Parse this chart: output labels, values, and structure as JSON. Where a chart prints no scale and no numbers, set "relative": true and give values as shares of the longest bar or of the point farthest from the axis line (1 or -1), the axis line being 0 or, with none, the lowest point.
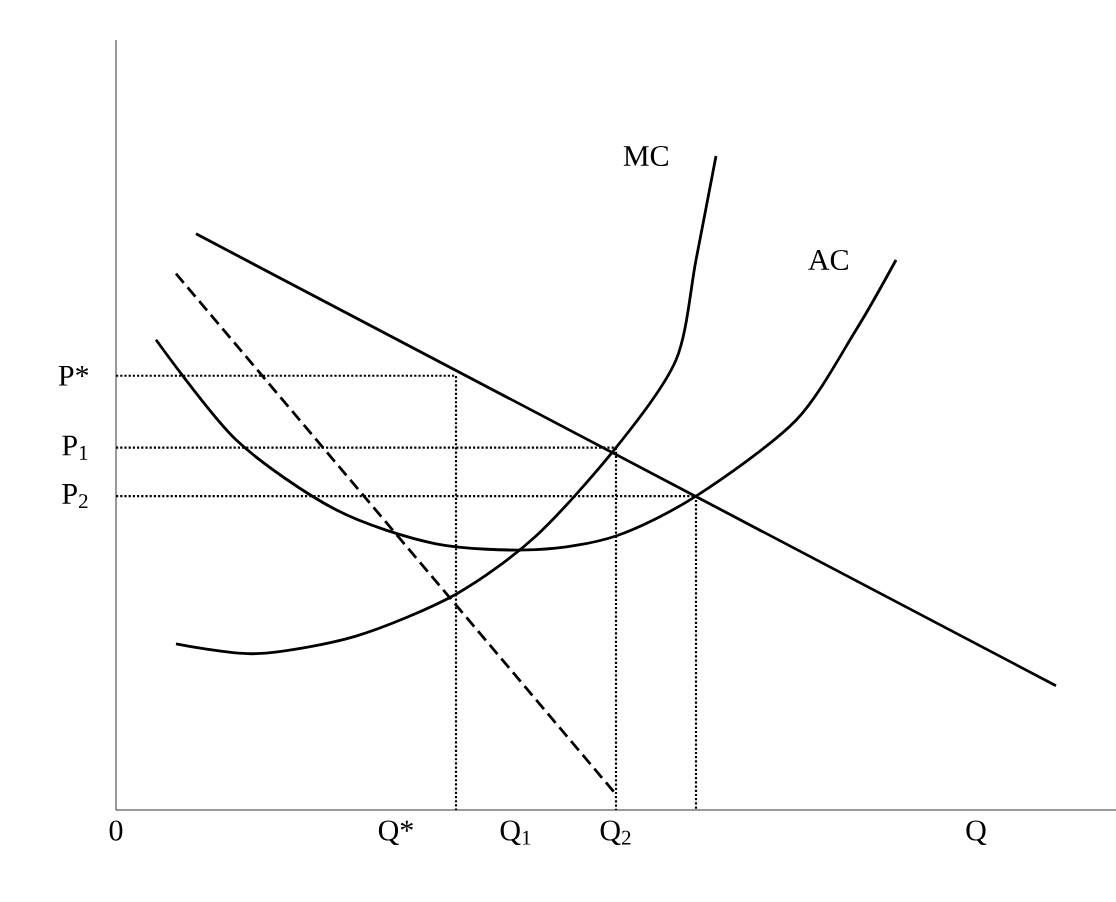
{
  "chart_data": {
    "type": "line",
    "relative": true,
    "categories": [
      "0",
      null,
      null,
      null,
      null,
      null,
      null,
      null,
      null,
      null,
      null,
      null,
      null,
      null,
      "Q*",
      null,
      null,
      null,
      null,
      null,
      "Q$_{1}$",
      null,
      null,
      null,
      null,
      "Q$_{2}$",
      null,
      null,
      null,
      null,
      null,
      null,
      null,
      null,
      null,
      null,
      null,
      null,
      null,
      null,
      null,
      null,
      null,
      "Q",
      null,
      null,
      null,
      null,
      null,
      null,
      null
    ],
    "series": [
      {
        "name": "MC",
        "color": "#000000",
        "line_style": "solid",
        "values": [
          null,
          null,
          null,
          0.254,
          null,
          null,
          null,
          0.239,
          null,
          null,
          null,
          null,
          0.266,
          null,
          null,
          null,
          null,
          0.33,
          null,
          null,
          null,
          0.419,
          null,
          null,
          null,
          0.554,
          null,
          null,
          0.688,
          0.841,
          1.0,
          null,
          null,
          null,
          null,
          null,
          null,
          null,
          null,
          null,
          null,
          null,
          null,
          null,
          null,
          null,
          null,
          null,
          null,
          null,
          null
        ]
      },
      {
        "name": "AC",
        "color": "#000000",
        "line_style": "solid",
        "values": [
          null,
          null,
          0.719,
          null,
          null,
          null,
          0.566,
          null,
          null,
          null,
          null,
          0.459,
          null,
          null,
          null,
          null,
          0.407,
          null,
          null,
          null,
          null,
          0.398,
          null,
          null,
          null,
          0.419,
          null,
          null,
          null,
          0.48,
          null,
          null,
          null,
          null,
          0.596,
          null,
          null,
          0.734,
          null,
          0.841,
          null,
          null,
          null,
          null,
          null,
          null,
          null,
          null,
          null,
          null,
          null
        ]
      },
      {
        "color": "#000000",
        "line_style": "solid",
        "values": [
          null,
          null,
          null,
          null,
          0.881,
          null,
          null,
          null,
          null,
          null,
          null,
          null,
          null,
          null,
          null,
          null,
          null,
          null,
          null,
          null,
          null,
          null,
          null,
          null,
          null,
          null,
          null,
          null,
          null,
          null,
          null,
          null,
          null,
          null,
          null,
          null,
          null,
          null,
          null,
          null,
          null,
          null,
          null,
          null,
          null,
          null,
          null,
          0.19,
          null,
          null,
          null
        ]
      },
      {
        "color": "#000000",
        "line_style": "dashed",
        "values": [
          null,
          null,
          null,
          0.82,
          null,
          null,
          null,
          null,
          null,
          null,
          null,
          null,
          null,
          null,
          null,
          null,
          null,
          null,
          null,
          null,
          null,
          null,
          null,
          null,
          null,
          0.024,
          null,
          null,
          null,
          null,
          null,
          null,
          null,
          null,
          null,
          null,
          null,
          null,
          null,
          null,
          null,
          null,
          null,
          null,
          null,
          null,
          null,
          null,
          null,
          null,
          null
        ]
      },
      {
        "type": "step",
        "color": "#000000",
        "line_style": "dotted",
        "values": [
          0.664,
          null,
          null,
          null,
          null,
          null,
          null,
          null,
          null,
          null,
          null,
          null,
          null,
          null,
          null,
          null,
          null,
          0,
          null,
          null,
          null,
          null,
          null,
          null,
          null,
          null,
          null,
          null,
          null,
          null,
          null,
          null,
          null,
          null,
          null,
          null,
          null,
          null,
          null,
          null,
          null,
          null,
          null,
          null,
          null,
          null,
          null,
          null,
          null,
          null,
          null
        ]
      },
      {
        "type": "step",
        "color": "#000000",
        "line_style": "dotted",
        "values": [
          0.554,
          null,
          null,
          null,
          null,
          null,
          null,
          null,
          null,
          null,
          null,
          null,
          null,
          null,
          null,
          null,
          null,
          null,
          null,
          null,
          null,
          null,
          null,
          null,
          null,
          0,
          null,
          null,
          null,
          null,
          null,
          null,
          null,
          null,
          null,
          null,
          null,
          null,
          null,
          null,
          null,
          null,
          null,
          null,
          null,
          null,
          null,
          null,
          null,
          null,
          null
        ]
      },
      {
        "type": "step",
        "color": "#000000",
        "line_style": "dotted",
        "values": [
          0.48,
          null,
          null,
          null,
          null,
          null,
          null,
          null,
          null,
          null,
          null,
          null,
          null,
          null,
          null,
          null,
          null,
          null,
          null,
          null,
          null,
          null,
          null,
          null,
          null,
          null,
          null,
          null,
          null,
          0,
          null,
          null,
          null,
          null,
          null,
          null,
          null,
          null,
          null,
          null,
          null,
          null,
          null,
          null,
          null,
          null,
          null,
          null,
          null,
          null,
          null
        ]
      }
    ],
    "annotations": [
      "P*",
      "P$_{1}$",
      "P$_{2}$"
    ]
  }
}
